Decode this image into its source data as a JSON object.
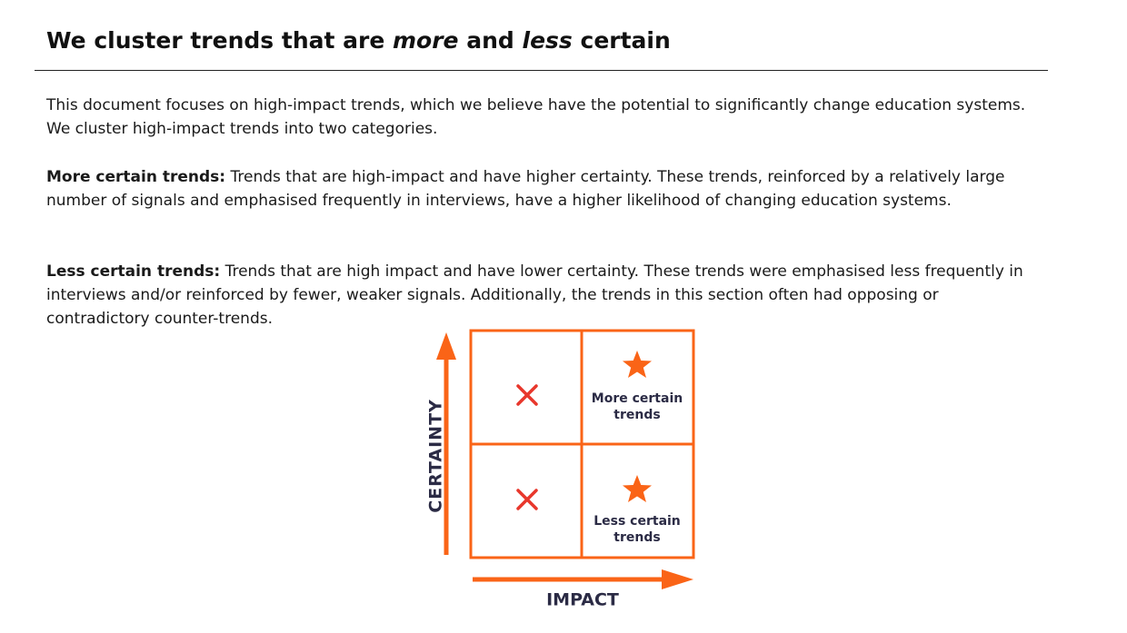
{
  "header": {
    "title_parts": [
      "We cluster trends that are ",
      "more",
      " and ",
      "less",
      " certain"
    ]
  },
  "paragraphs": [
    {
      "text": "This document focuses on high-impact trends, which we believe have the potential to significantly change education systems. We cluster high-impact trends into two categories."
    },
    {
      "label": "More certain trends:",
      "text": " Trends that are high-impact and have higher certainty. These trends, reinforced by a relatively large number of signals and emphasised frequently in interviews, have a higher likelihood of changing education systems."
    },
    {
      "label": "Less certain trends:",
      "text": " Trends that are high impact and have lower certainty. These trends were emphasised less frequently in interviews and/or reinforced by fewer, weaker signals. Additionally, the trends in this section often had opposing or contradictory counter-trends."
    }
  ],
  "diagram": {
    "y_axis": "CERTAINTY",
    "x_axis": "IMPACT",
    "quadrants": [
      {
        "label": "More certain trends"
      },
      {
        "label": "Less certain trends"
      }
    ]
  }
}
